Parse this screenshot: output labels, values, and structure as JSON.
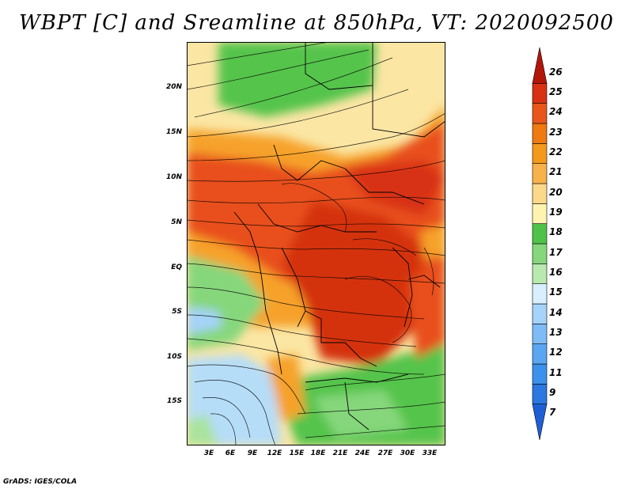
{
  "title": "WBPT [C] and Sreamline at 850hPa, VT: 2020092500",
  "credit": "GrADS: IGES/COLA",
  "lat_labels": [
    "20N",
    "15N",
    "10N",
    "5N",
    "EQ",
    "5S",
    "10S",
    "15S"
  ],
  "lon_labels": [
    "3E",
    "6E",
    "9E",
    "12E",
    "15E",
    "18E",
    "21E",
    "24E",
    "27E",
    "30E",
    "33E"
  ],
  "legend": {
    "labels": [
      "7",
      "9",
      "11",
      "12",
      "13",
      "14",
      "15",
      "16",
      "17",
      "18",
      "19",
      "20",
      "21",
      "22",
      "23",
      "24",
      "25",
      "26"
    ],
    "colors": [
      "#1f5fd6",
      "#2a78e0",
      "#3c91ec",
      "#5aa6f2",
      "#7fbcf6",
      "#a6d3fa",
      "#d8efff",
      "#b8eab0",
      "#86d77c",
      "#4fc24a",
      "#fff3b0",
      "#fbd98a",
      "#f7b24c",
      "#f39a1d",
      "#ef7a12",
      "#e9561c",
      "#d83113",
      "#b31509"
    ]
  },
  "colors": {
    "land_warm": "#e8501a",
    "land_hot": "#d4320e",
    "green": "#55c44c",
    "light_green": "#a9e39e",
    "yellow": "#fbe6a4",
    "orange": "#f6a22c",
    "light_blue": "#b6ddf8",
    "streamline": "#000000"
  }
}
